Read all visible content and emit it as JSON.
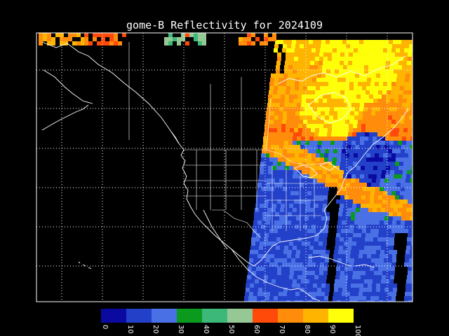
{
  "map": {
    "title": "gome-B Reflectivity for 2024109",
    "colors": {
      "background": "#000000",
      "frame": "#ffffff",
      "coast": "#ffffff",
      "grid": "#ffffff"
    }
  },
  "colorbar": {
    "bins": [
      {
        "low": 0,
        "high": 10,
        "color": "#0a0aa0"
      },
      {
        "low": 10,
        "high": 20,
        "color": "#2341c8"
      },
      {
        "low": 20,
        "high": 30,
        "color": "#4a70e6"
      },
      {
        "low": 30,
        "high": 40,
        "color": "#0a9a1e"
      },
      {
        "low": 40,
        "high": 50,
        "color": "#3cb878"
      },
      {
        "low": 50,
        "high": 60,
        "color": "#96c896"
      },
      {
        "low": 60,
        "high": 70,
        "color": "#ff4a0a"
      },
      {
        "low": 70,
        "high": 80,
        "color": "#ff8c0a"
      },
      {
        "low": 80,
        "high": 90,
        "color": "#ffb400"
      },
      {
        "low": 90,
        "high": 100,
        "color": "#ffff0a"
      }
    ],
    "tick_labels": [
      "0",
      "10",
      "20",
      "30",
      "40",
      "50",
      "60",
      "70",
      "80",
      "90",
      "100"
    ]
  }
}
